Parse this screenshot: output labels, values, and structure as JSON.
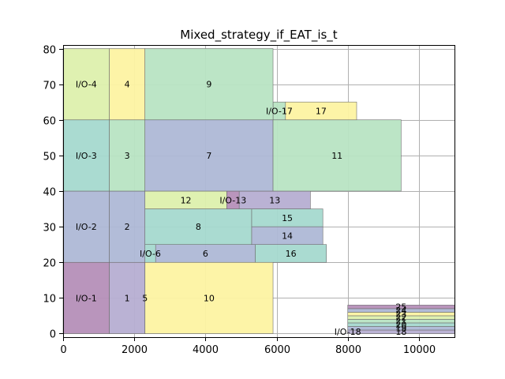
{
  "chart_data": {
    "type": "gantt",
    "title": "Mixed_strategy_if_EAT_is_t",
    "xlim": [
      0,
      11000
    ],
    "ylim": [
      -1,
      81
    ],
    "x_ticks": [
      0,
      2000,
      4000,
      6000,
      8000,
      10000
    ],
    "y_ticks": [
      0,
      10,
      20,
      30,
      40,
      50,
      60,
      70,
      80
    ],
    "grid": true,
    "palette": {
      "purple": "#b58fb8",
      "lavender": "#b6aed2",
      "steel": "#aeb8d6",
      "teal": "#a5d9cf",
      "green": "#b8e4c3",
      "lime": "#ddf0ad",
      "yellow": "#fdf3a2"
    },
    "boxes": [
      {
        "label": "I/O-1",
        "x0": 0,
        "x1": 1300,
        "y0": 0,
        "y1": 20,
        "color": "purple"
      },
      {
        "label": "1",
        "x0": 1300,
        "x1": 2300,
        "y0": 0,
        "y1": 20,
        "color": "lavender"
      },
      {
        "label": "5",
        "x0": 2300,
        "x1": 2300,
        "y0": 0,
        "y1": 20,
        "color": "steel"
      },
      {
        "label": "10",
        "x0": 2300,
        "x1": 5900,
        "y0": 0,
        "y1": 20,
        "color": "yellow"
      },
      {
        "label": "I/O-2",
        "x0": 0,
        "x1": 1300,
        "y0": 20,
        "y1": 40,
        "color": "steel"
      },
      {
        "label": "2",
        "x0": 1300,
        "x1": 2300,
        "y0": 20,
        "y1": 40,
        "color": "steel"
      },
      {
        "label": "I/O-6",
        "x0": 2300,
        "x1": 2600,
        "y0": 20,
        "y1": 25,
        "color": "teal"
      },
      {
        "label": "6",
        "x0": 2600,
        "x1": 5400,
        "y0": 20,
        "y1": 25,
        "color": "steel"
      },
      {
        "label": "16",
        "x0": 5400,
        "x1": 7400,
        "y0": 20,
        "y1": 25,
        "color": "teal"
      },
      {
        "label": "8",
        "x0": 2300,
        "x1": 5300,
        "y0": 25,
        "y1": 35,
        "color": "teal"
      },
      {
        "label": "14",
        "x0": 5300,
        "x1": 7300,
        "y0": 25,
        "y1": 30,
        "color": "steel"
      },
      {
        "label": "15",
        "x0": 5300,
        "x1": 7300,
        "y0": 30,
        "y1": 35,
        "color": "teal"
      },
      {
        "label": "12",
        "x0": 2300,
        "x1": 4600,
        "y0": 35,
        "y1": 40,
        "color": "lime"
      },
      {
        "label": "I/O-13",
        "x0": 4600,
        "x1": 4950,
        "y0": 35,
        "y1": 40,
        "color": "purple"
      },
      {
        "label": "13",
        "x0": 4950,
        "x1": 6950,
        "y0": 35,
        "y1": 40,
        "color": "lavender"
      },
      {
        "label": "I/O-3",
        "x0": 0,
        "x1": 1300,
        "y0": 40,
        "y1": 60,
        "color": "teal"
      },
      {
        "label": "3",
        "x0": 1300,
        "x1": 2300,
        "y0": 40,
        "y1": 60,
        "color": "green"
      },
      {
        "label": "7",
        "x0": 2300,
        "x1": 5900,
        "y0": 40,
        "y1": 60,
        "color": "steel"
      },
      {
        "label": "11",
        "x0": 5900,
        "x1": 9500,
        "y0": 40,
        "y1": 60,
        "color": "green"
      },
      {
        "label": "I/O-17",
        "x0": 5900,
        "x1": 6250,
        "y0": 60,
        "y1": 65,
        "color": "green"
      },
      {
        "label": "17",
        "x0": 6250,
        "x1": 8250,
        "y0": 60,
        "y1": 65,
        "color": "yellow"
      },
      {
        "label": "I/O-4",
        "x0": 0,
        "x1": 1300,
        "y0": 60,
        "y1": 80,
        "color": "lime"
      },
      {
        "label": "4",
        "x0": 1300,
        "x1": 2300,
        "y0": 60,
        "y1": 80,
        "color": "yellow"
      },
      {
        "label": "9",
        "x0": 2300,
        "x1": 5900,
        "y0": 60,
        "y1": 80,
        "color": "green"
      },
      {
        "label": "I/O-18",
        "x0": 8000,
        "x1": 8000,
        "y0": 0,
        "y1": 1,
        "color": "purple"
      },
      {
        "label": "18",
        "x0": 8000,
        "x1": 11000,
        "y0": 0,
        "y1": 1,
        "color": "lavender"
      },
      {
        "label": "19",
        "x0": 8000,
        "x1": 11000,
        "y0": 1,
        "y1": 2,
        "color": "steel"
      },
      {
        "label": "20",
        "x0": 8000,
        "x1": 11000,
        "y0": 2,
        "y1": 3,
        "color": "teal"
      },
      {
        "label": "21",
        "x0": 8000,
        "x1": 11000,
        "y0": 3,
        "y1": 4,
        "color": "green"
      },
      {
        "label": "22",
        "x0": 8000,
        "x1": 11000,
        "y0": 4,
        "y1": 5,
        "color": "lime"
      },
      {
        "label": "23",
        "x0": 8000,
        "x1": 11000,
        "y0": 5,
        "y1": 6,
        "color": "yellow"
      },
      {
        "label": "24",
        "x0": 8000,
        "x1": 11000,
        "y0": 6,
        "y1": 7,
        "color": "steel"
      },
      {
        "label": "25",
        "x0": 8000,
        "x1": 11000,
        "y0": 7,
        "y1": 8,
        "color": "purple"
      }
    ]
  }
}
